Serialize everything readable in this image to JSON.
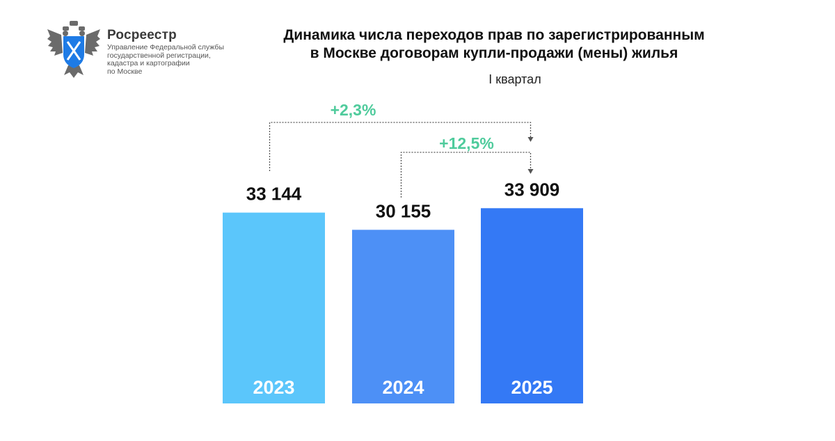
{
  "header": {
    "org_name": "Росреестр",
    "org_sub": [
      "Управление Федеральной службы",
      "государственной регистрации,",
      "кадастра и картографии",
      "по Москве"
    ],
    "title_lines": [
      "Динамика числа переходов прав по зарегистрированным",
      "в Москве договорам купли-продажи (мены) жилья"
    ],
    "subtitle": "I квартал"
  },
  "icons": {
    "logo": "double-headed-eagle-emblem"
  },
  "chart_data": {
    "type": "bar",
    "title": "Динамика числа переходов прав по зарегистрированным в Москве договорам купли-продажи (мены) жилья",
    "subtitle": "I квартал",
    "categories": [
      "2023",
      "2024",
      "2025"
    ],
    "values": [
      33144,
      30155,
      33909
    ],
    "value_labels": [
      "33 144",
      "30 155",
      "33 909"
    ],
    "colors": [
      "#5bc6fb",
      "#4d90f6",
      "#3479f5"
    ],
    "ylim": [
      0,
      36000
    ],
    "grid": false,
    "legend": "none",
    "annotations": [
      {
        "text": "+2,3%",
        "from": "2023",
        "to": "2025",
        "color": "#4fcb9c"
      },
      {
        "text": "+12,5%",
        "from": "2024",
        "to": "2025",
        "color": "#4fcb9c"
      }
    ]
  }
}
